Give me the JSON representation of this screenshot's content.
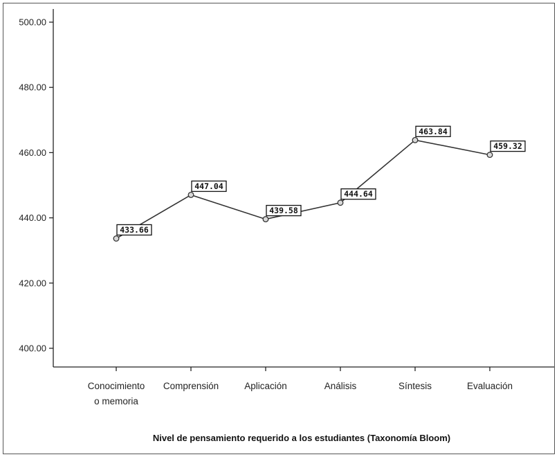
{
  "chart_data": {
    "type": "line",
    "categories": [
      [
        "Conocimiento",
        "o memoria"
      ],
      [
        "Comprensión"
      ],
      [
        "Aplicación"
      ],
      [
        "Análisis"
      ],
      [
        "Síntesis"
      ],
      [
        "Evaluación"
      ]
    ],
    "values": [
      433.66,
      447.04,
      439.58,
      444.64,
      463.84,
      459.32
    ],
    "data_labels": [
      "433.66",
      "447.04",
      "439.58",
      "444.64",
      "463.84",
      "459.32"
    ],
    "title": "",
    "xlabel": "Nivel de pensamiento requerido a los estudiantes (Taxonomía Bloom)",
    "ylabel": "",
    "ylim": [
      400,
      500
    ],
    "yticks": [
      400,
      420,
      440,
      460,
      480,
      500
    ],
    "ytick_labels": [
      "400.00",
      "420.00",
      "440.00",
      "460.00",
      "480.00",
      "500.00"
    ],
    "grid": false,
    "colors": {
      "line": "#333333",
      "marker_fill": "#d9d9d9",
      "axis": "#222222"
    }
  }
}
